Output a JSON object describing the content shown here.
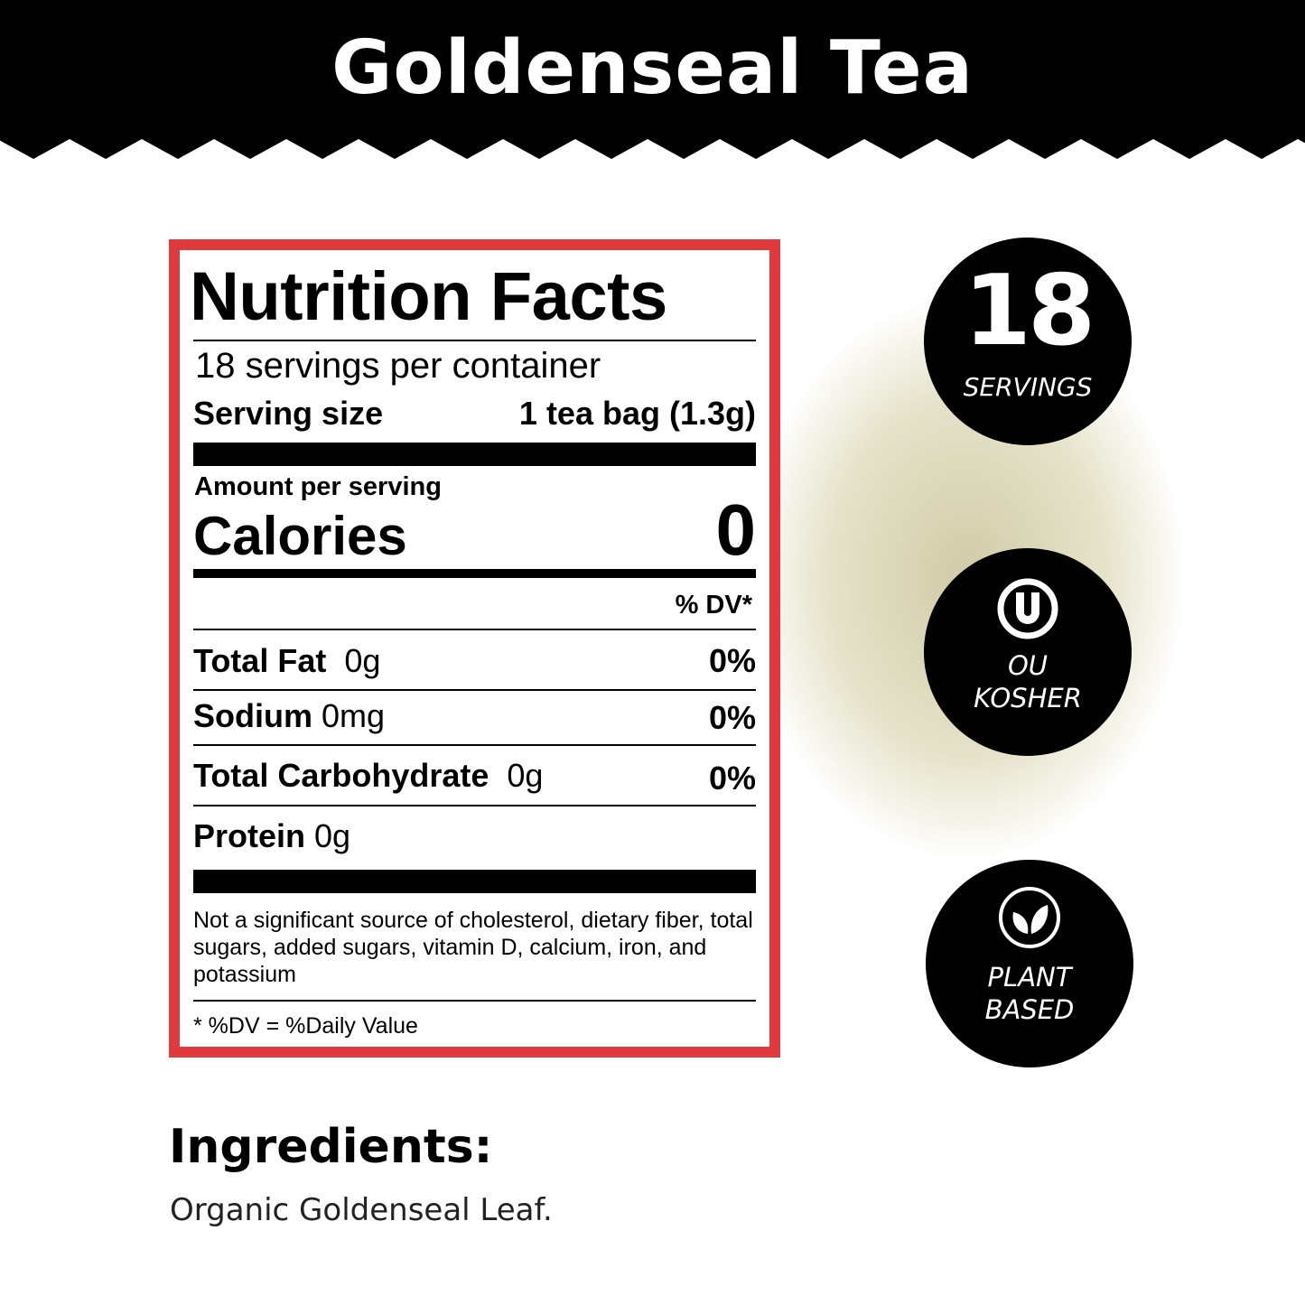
{
  "header": {
    "title": "Goldenseal Tea"
  },
  "nutrition": {
    "title": "Nutrition Facts",
    "servings_per_container": "18 servings per container",
    "serving_size_label": "Serving size",
    "serving_size_value": "1 tea bag (1.3g)",
    "amount_per_serving": "Amount per serving",
    "calories_label": "Calories",
    "calories_value": "0",
    "dv_header": "% DV*",
    "rows": [
      {
        "name": "Total Fat",
        "amount": "0g",
        "dv": "0%"
      },
      {
        "name": "Sodium",
        "amount": "0mg",
        "dv": "0%"
      },
      {
        "name": "Total Carbohydrate",
        "amount": "0g",
        "dv": "0%"
      },
      {
        "name": "Protein",
        "amount": "0g",
        "dv": ""
      }
    ],
    "footnote": "Not a significant source of cholesterol, dietary fiber, total sugars, added sugars, vitamin D, calcium, iron, and potassium",
    "dv_note": "* %DV = %Daily Value",
    "border_color": "#e0393e"
  },
  "badges": [
    {
      "number": "18",
      "label": "SERVINGS"
    },
    {
      "icon": "ou-kosher-icon",
      "line1": "OU",
      "line2": "KOSHER"
    },
    {
      "icon": "leaf-icon",
      "line1": "PLANT",
      "line2": "BASED"
    }
  ],
  "ingredients": {
    "heading": "Ingredients:",
    "text": "Organic Goldenseal Leaf."
  }
}
